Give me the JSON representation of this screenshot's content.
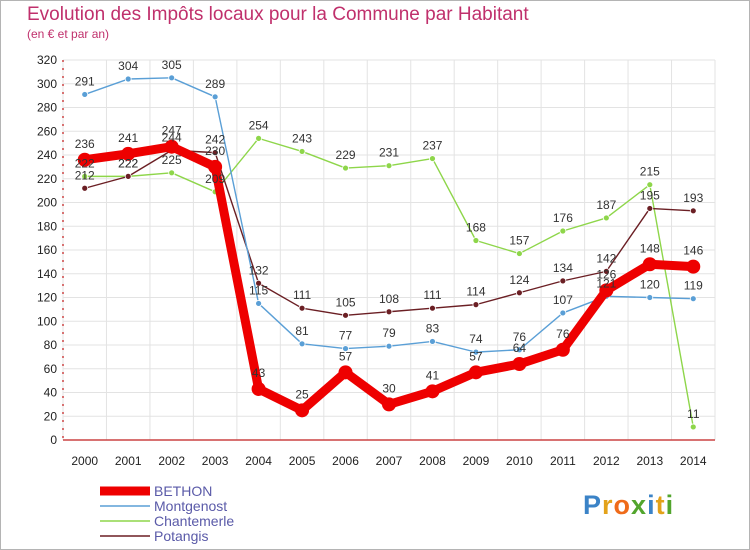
{
  "header": {
    "title": "Evolution des Impôts locaux pour la Commune par Habitant",
    "subtitle": "(en € et par an)"
  },
  "chart_data": {
    "type": "line",
    "x": [
      "2000",
      "2001",
      "2002",
      "2003",
      "2004",
      "2005",
      "2006",
      "2007",
      "2008",
      "2009",
      "2010",
      "2011",
      "2012",
      "2013",
      "2014"
    ],
    "ylim": [
      0,
      320
    ],
    "yticks": [
      0,
      20,
      40,
      60,
      80,
      100,
      120,
      140,
      160,
      180,
      200,
      220,
      240,
      260,
      280,
      300,
      320
    ],
    "grid": true,
    "series": [
      {
        "name": "Chantemerle",
        "color": "#8ed64a",
        "values": [
          222,
          222,
          225,
          209,
          254,
          243,
          229,
          231,
          237,
          168,
          157,
          176,
          187,
          215,
          11
        ]
      },
      {
        "name": "Potangis",
        "color": "#6b1f24",
        "values": [
          212,
          222,
          244,
          242,
          132,
          111,
          105,
          108,
          111,
          114,
          124,
          134,
          142,
          195,
          193
        ]
      },
      {
        "name": "Montgenost",
        "color": "#5a9fd6",
        "values": [
          291,
          304,
          305,
          289,
          115,
          81,
          77,
          79,
          83,
          74,
          76,
          107,
          121,
          120,
          119
        ]
      },
      {
        "name": "BETHON",
        "color": "#ee0000",
        "values": [
          236,
          241,
          247,
          230,
          43,
          25,
          57,
          30,
          41,
          57,
          64,
          76,
          126,
          148,
          146
        ]
      }
    ],
    "legend": [
      "BETHON",
      "Montgenost",
      "Chantemerle",
      "Potangis"
    ],
    "legend_position": "bottom-left"
  },
  "logo": {
    "letters": [
      "P",
      "r",
      "o",
      "x",
      "i",
      "t",
      "i"
    ],
    "colors": [
      "#3b83c7",
      "#e3a21a",
      "#ef6b1a",
      "#52a52d",
      "#3b83c7",
      "#e3a21a",
      "#52a52d"
    ]
  }
}
